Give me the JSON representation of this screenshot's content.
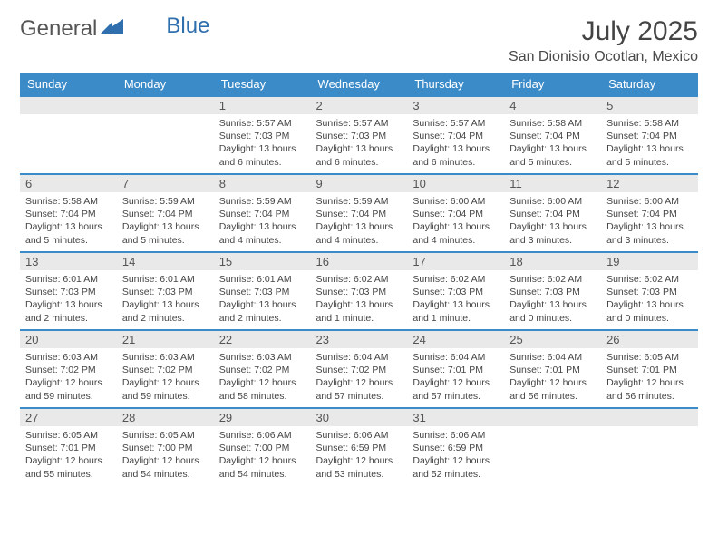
{
  "logo": {
    "text_a": "General",
    "text_b": "Blue"
  },
  "header": {
    "title": "July 2025",
    "location": "San Dionisio Ocotlan, Mexico"
  },
  "colors": {
    "header_bg": "#3b8bc9",
    "header_text": "#ffffff",
    "daynum_bg": "#e9e9e9",
    "body_text": "#444444",
    "row_border": "#3b8bc9",
    "logo_blue": "#2f6fad"
  },
  "weekdays": [
    "Sunday",
    "Monday",
    "Tuesday",
    "Wednesday",
    "Thursday",
    "Friday",
    "Saturday"
  ],
  "weeks": [
    [
      {
        "blank": true
      },
      {
        "blank": true
      },
      {
        "n": "1",
        "sr": "Sunrise: 5:57 AM",
        "ss": "Sunset: 7:03 PM",
        "dl": "Daylight: 13 hours and 6 minutes."
      },
      {
        "n": "2",
        "sr": "Sunrise: 5:57 AM",
        "ss": "Sunset: 7:03 PM",
        "dl": "Daylight: 13 hours and 6 minutes."
      },
      {
        "n": "3",
        "sr": "Sunrise: 5:57 AM",
        "ss": "Sunset: 7:04 PM",
        "dl": "Daylight: 13 hours and 6 minutes."
      },
      {
        "n": "4",
        "sr": "Sunrise: 5:58 AM",
        "ss": "Sunset: 7:04 PM",
        "dl": "Daylight: 13 hours and 5 minutes."
      },
      {
        "n": "5",
        "sr": "Sunrise: 5:58 AM",
        "ss": "Sunset: 7:04 PM",
        "dl": "Daylight: 13 hours and 5 minutes."
      }
    ],
    [
      {
        "n": "6",
        "sr": "Sunrise: 5:58 AM",
        "ss": "Sunset: 7:04 PM",
        "dl": "Daylight: 13 hours and 5 minutes."
      },
      {
        "n": "7",
        "sr": "Sunrise: 5:59 AM",
        "ss": "Sunset: 7:04 PM",
        "dl": "Daylight: 13 hours and 5 minutes."
      },
      {
        "n": "8",
        "sr": "Sunrise: 5:59 AM",
        "ss": "Sunset: 7:04 PM",
        "dl": "Daylight: 13 hours and 4 minutes."
      },
      {
        "n": "9",
        "sr": "Sunrise: 5:59 AM",
        "ss": "Sunset: 7:04 PM",
        "dl": "Daylight: 13 hours and 4 minutes."
      },
      {
        "n": "10",
        "sr": "Sunrise: 6:00 AM",
        "ss": "Sunset: 7:04 PM",
        "dl": "Daylight: 13 hours and 4 minutes."
      },
      {
        "n": "11",
        "sr": "Sunrise: 6:00 AM",
        "ss": "Sunset: 7:04 PM",
        "dl": "Daylight: 13 hours and 3 minutes."
      },
      {
        "n": "12",
        "sr": "Sunrise: 6:00 AM",
        "ss": "Sunset: 7:04 PM",
        "dl": "Daylight: 13 hours and 3 minutes."
      }
    ],
    [
      {
        "n": "13",
        "sr": "Sunrise: 6:01 AM",
        "ss": "Sunset: 7:03 PM",
        "dl": "Daylight: 13 hours and 2 minutes."
      },
      {
        "n": "14",
        "sr": "Sunrise: 6:01 AM",
        "ss": "Sunset: 7:03 PM",
        "dl": "Daylight: 13 hours and 2 minutes."
      },
      {
        "n": "15",
        "sr": "Sunrise: 6:01 AM",
        "ss": "Sunset: 7:03 PM",
        "dl": "Daylight: 13 hours and 2 minutes."
      },
      {
        "n": "16",
        "sr": "Sunrise: 6:02 AM",
        "ss": "Sunset: 7:03 PM",
        "dl": "Daylight: 13 hours and 1 minute."
      },
      {
        "n": "17",
        "sr": "Sunrise: 6:02 AM",
        "ss": "Sunset: 7:03 PM",
        "dl": "Daylight: 13 hours and 1 minute."
      },
      {
        "n": "18",
        "sr": "Sunrise: 6:02 AM",
        "ss": "Sunset: 7:03 PM",
        "dl": "Daylight: 13 hours and 0 minutes."
      },
      {
        "n": "19",
        "sr": "Sunrise: 6:02 AM",
        "ss": "Sunset: 7:03 PM",
        "dl": "Daylight: 13 hours and 0 minutes."
      }
    ],
    [
      {
        "n": "20",
        "sr": "Sunrise: 6:03 AM",
        "ss": "Sunset: 7:02 PM",
        "dl": "Daylight: 12 hours and 59 minutes."
      },
      {
        "n": "21",
        "sr": "Sunrise: 6:03 AM",
        "ss": "Sunset: 7:02 PM",
        "dl": "Daylight: 12 hours and 59 minutes."
      },
      {
        "n": "22",
        "sr": "Sunrise: 6:03 AM",
        "ss": "Sunset: 7:02 PM",
        "dl": "Daylight: 12 hours and 58 minutes."
      },
      {
        "n": "23",
        "sr": "Sunrise: 6:04 AM",
        "ss": "Sunset: 7:02 PM",
        "dl": "Daylight: 12 hours and 57 minutes."
      },
      {
        "n": "24",
        "sr": "Sunrise: 6:04 AM",
        "ss": "Sunset: 7:01 PM",
        "dl": "Daylight: 12 hours and 57 minutes."
      },
      {
        "n": "25",
        "sr": "Sunrise: 6:04 AM",
        "ss": "Sunset: 7:01 PM",
        "dl": "Daylight: 12 hours and 56 minutes."
      },
      {
        "n": "26",
        "sr": "Sunrise: 6:05 AM",
        "ss": "Sunset: 7:01 PM",
        "dl": "Daylight: 12 hours and 56 minutes."
      }
    ],
    [
      {
        "n": "27",
        "sr": "Sunrise: 6:05 AM",
        "ss": "Sunset: 7:01 PM",
        "dl": "Daylight: 12 hours and 55 minutes."
      },
      {
        "n": "28",
        "sr": "Sunrise: 6:05 AM",
        "ss": "Sunset: 7:00 PM",
        "dl": "Daylight: 12 hours and 54 minutes."
      },
      {
        "n": "29",
        "sr": "Sunrise: 6:06 AM",
        "ss": "Sunset: 7:00 PM",
        "dl": "Daylight: 12 hours and 54 minutes."
      },
      {
        "n": "30",
        "sr": "Sunrise: 6:06 AM",
        "ss": "Sunset: 6:59 PM",
        "dl": "Daylight: 12 hours and 53 minutes."
      },
      {
        "n": "31",
        "sr": "Sunrise: 6:06 AM",
        "ss": "Sunset: 6:59 PM",
        "dl": "Daylight: 12 hours and 52 minutes."
      },
      {
        "blank": true
      },
      {
        "blank": true
      }
    ]
  ]
}
